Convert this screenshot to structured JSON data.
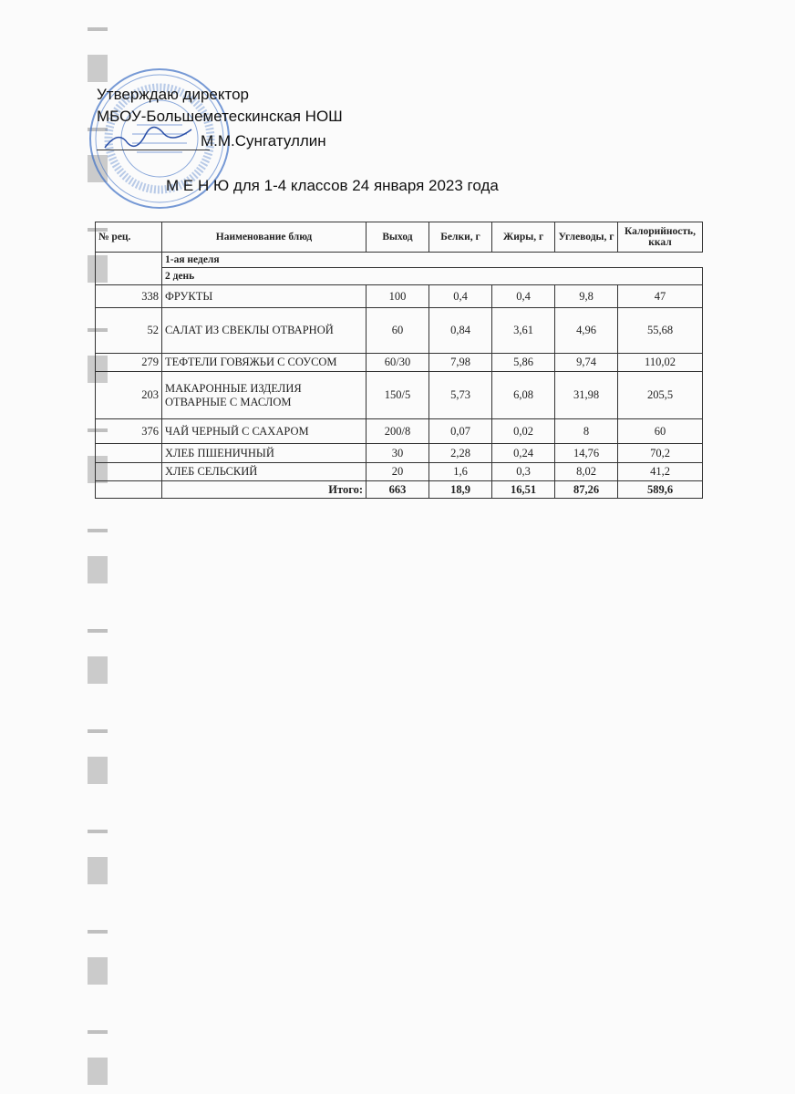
{
  "approval": {
    "line1": "Утверждаю  директор",
    "line2": "МБОУ-Большеметескинская НОШ",
    "line3": "М.М.Сунгатуллин"
  },
  "title": "М Е Н Ю  для 1-4 классов  24 января  2023 года",
  "stamp_color": "#3d6fc4",
  "stamp_text": "МБОУ Большеметескинская начальная общеобразовательная школа",
  "table": {
    "headers": [
      "№ рец.",
      "Наименование блюд",
      "Выход",
      "Белки, г",
      "Жиры, г",
      "Углеводы, г",
      "Калорийность, ккал"
    ],
    "week": "1-ая неделя",
    "day": "2 день",
    "rows": [
      {
        "rec": "338",
        "name": "ФРУКТЫ",
        "out": "100",
        "b": "0,4",
        "f": "0,4",
        "c": "9,8",
        "kcal": "47"
      },
      {
        "rec": "52",
        "name": "САЛАТ ИЗ СВЕКЛЫ ОТВАРНОЙ",
        "out": "60",
        "b": "0,84",
        "f": "3,61",
        "c": "4,96",
        "kcal": "55,68"
      },
      {
        "rec": "279",
        "name": "ТЕФТЕЛИ ГОВЯЖЬИ С СОУСОМ",
        "out": "60/30",
        "b": "7,98",
        "f": "5,86",
        "c": "9,74",
        "kcal": "110,02"
      },
      {
        "rec": "203",
        "name": "МАКАРОННЫЕ ИЗДЕЛИЯ ОТВАРНЫЕ С МАСЛОМ",
        "out": "150/5",
        "b": "5,73",
        "f": "6,08",
        "c": "31,98",
        "kcal": "205,5"
      },
      {
        "rec": "376",
        "name": "ЧАЙ ЧЕРНЫЙ С САХАРОМ",
        "out": "200/8",
        "b": "0,07",
        "f": "0,02",
        "c": "8",
        "kcal": "60"
      },
      {
        "rec": "",
        "name": "ХЛЕБ ПШЕНИЧНЫЙ",
        "out": "30",
        "b": "2,28",
        "f": "0,24",
        "c": "14,76",
        "kcal": "70,2"
      },
      {
        "rec": "",
        "name": "ХЛЕБ СЕЛЬСКИЙ",
        "out": "20",
        "b": "1,6",
        "f": "0,3",
        "c": "8,02",
        "kcal": "41,2"
      }
    ],
    "total": {
      "label": "Итого:",
      "out": "663",
      "b": "18,9",
      "f": "16,51",
      "c": "87,26",
      "kcal": "589,6"
    }
  }
}
